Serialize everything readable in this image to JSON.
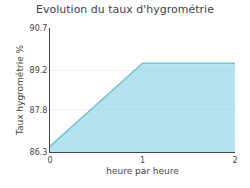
{
  "chart_data": {
    "type": "area",
    "title": "Evolution du taux d'hygrométrie",
    "x_label": "heure par heure",
    "y_label": "Taux hygrométrie %",
    "x": [
      0,
      1,
      2
    ],
    "values": [
      86.5,
      89.45,
      89.45
    ],
    "color": "#6ec6df",
    "xlim": [
      0,
      2
    ],
    "xticks": [
      0,
      1,
      2
    ],
    "ylim": [
      86.3,
      90.7
    ],
    "yticks": [
      86.3,
      87.8,
      89.2,
      90.7
    ],
    "grid": "y"
  }
}
